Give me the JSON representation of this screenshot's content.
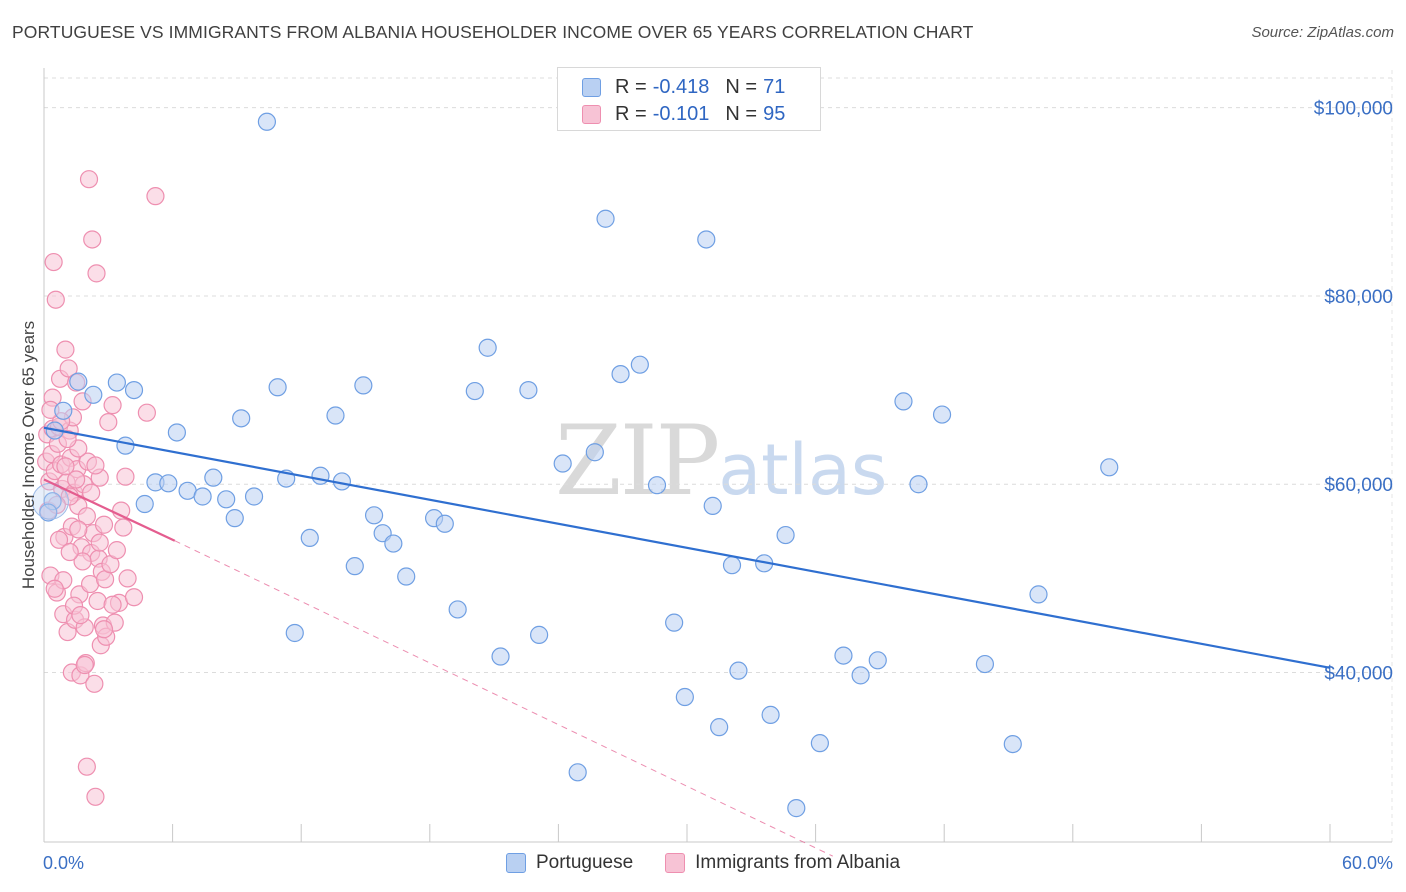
{
  "chart_data": {
    "type": "scatter",
    "title": "PORTUGUESE VS IMMIGRANTS FROM ALBANIA HOUSEHOLDER INCOME OVER 65 YEARS CORRELATION CHART",
    "source": "Source: ZipAtlas.com",
    "xlabel": "",
    "ylabel": "Householder Income Over 65 years",
    "xlim": [
      0,
      60
    ],
    "ylim": [
      22000,
      104000
    ],
    "x_tick_labels": [
      "0.0%",
      "60.0%"
    ],
    "y_ticks": [
      40000,
      60000,
      80000,
      100000
    ],
    "y_tick_labels": [
      "$40,000",
      "$60,000",
      "$80,000",
      "$100,000"
    ],
    "watermark": {
      "zip": "ZIP",
      "atlas": "atlas"
    },
    "legend": [
      {
        "r_label": "R =",
        "r_value": "-0.418",
        "n_label": "N =",
        "n_value": "71"
      },
      {
        "r_label": "R =",
        "r_value": "-0.101",
        "n_label": "N =",
        "n_value": "95"
      }
    ],
    "series": [
      {
        "name": "Portuguese",
        "color": "#6f9fe3",
        "fill": "#b9d0f2",
        "trend": {
          "x": [
            0,
            60
          ],
          "y": [
            66000,
            40500
          ],
          "color": "#2f6fd0"
        },
        "points": [
          [
            0.4,
            58200
          ],
          [
            0.5,
            65700
          ],
          [
            0.9,
            67800
          ],
          [
            1.6,
            70900
          ],
          [
            2.3,
            69500
          ],
          [
            3.4,
            70800
          ],
          [
            3.8,
            64100
          ],
          [
            4.2,
            70000
          ],
          [
            4.7,
            57900
          ],
          [
            5.2,
            60200
          ],
          [
            5.8,
            60100
          ],
          [
            6.2,
            65500
          ],
          [
            6.7,
            59300
          ],
          [
            7.4,
            58700
          ],
          [
            7.9,
            60700
          ],
          [
            8.5,
            58400
          ],
          [
            8.9,
            56400
          ],
          [
            9.2,
            67000
          ],
          [
            9.8,
            58700
          ],
          [
            10.4,
            98500
          ],
          [
            10.9,
            70300
          ],
          [
            11.3,
            60600
          ],
          [
            11.7,
            44200
          ],
          [
            12.4,
            54300
          ],
          [
            12.9,
            60900
          ],
          [
            13.6,
            67300
          ],
          [
            13.9,
            60300
          ],
          [
            14.5,
            51300
          ],
          [
            14.9,
            70500
          ],
          [
            15.4,
            56700
          ],
          [
            15.8,
            54800
          ],
          [
            16.3,
            53700
          ],
          [
            16.9,
            50200
          ],
          [
            18.2,
            56400
          ],
          [
            18.7,
            55800
          ],
          [
            19.3,
            46700
          ],
          [
            20.1,
            69900
          ],
          [
            20.7,
            74500
          ],
          [
            21.3,
            41700
          ],
          [
            22.6,
            70000
          ],
          [
            23.1,
            44000
          ],
          [
            24.2,
            62200
          ],
          [
            24.9,
            29400
          ],
          [
            25.7,
            63400
          ],
          [
            26.2,
            88200
          ],
          [
            26.9,
            71700
          ],
          [
            27.8,
            72700
          ],
          [
            28.6,
            59900
          ],
          [
            29.4,
            45300
          ],
          [
            29.9,
            37400
          ],
          [
            30.9,
            86000
          ],
          [
            31.2,
            57700
          ],
          [
            31.5,
            34200
          ],
          [
            32.1,
            51400
          ],
          [
            32.4,
            40200
          ],
          [
            33.6,
            51600
          ],
          [
            33.9,
            35500
          ],
          [
            34.6,
            54600
          ],
          [
            35.1,
            25600
          ],
          [
            36.2,
            32500
          ],
          [
            37.3,
            41800
          ],
          [
            38.1,
            39700
          ],
          [
            38.9,
            41300
          ],
          [
            40.1,
            68800
          ],
          [
            40.8,
            60000
          ],
          [
            41.9,
            67400
          ],
          [
            43.9,
            40900
          ],
          [
            45.2,
            32400
          ],
          [
            46.4,
            48300
          ],
          [
            49.7,
            61800
          ],
          [
            0.2,
            57000
          ]
        ]
      },
      {
        "name": "Immigrants from Albania",
        "color": "#ee8fb0",
        "fill": "#f7c3d5",
        "trend": {
          "x": [
            0,
            6.1
          ],
          "y": [
            60500,
            54000
          ],
          "color": "#e45d8f",
          "extension_x": [
            6.1,
            36.8
          ],
          "extension_y": [
            54000,
            20500
          ]
        },
        "points": [
          [
            0.1,
            62400
          ],
          [
            0.15,
            65300
          ],
          [
            0.2,
            57200
          ],
          [
            0.25,
            60300
          ],
          [
            0.3,
            50300
          ],
          [
            0.35,
            63200
          ],
          [
            0.4,
            65900
          ],
          [
            0.45,
            83600
          ],
          [
            0.5,
            61400
          ],
          [
            0.55,
            79600
          ],
          [
            0.6,
            48500
          ],
          [
            0.65,
            64300
          ],
          [
            0.7,
            66100
          ],
          [
            0.75,
            71200
          ],
          [
            0.8,
            62100
          ],
          [
            0.85,
            59500
          ],
          [
            0.9,
            46200
          ],
          [
            0.95,
            54400
          ],
          [
            1.0,
            74300
          ],
          [
            1.05,
            60200
          ],
          [
            1.1,
            44300
          ],
          [
            1.15,
            72300
          ],
          [
            1.2,
            65700
          ],
          [
            1.25,
            62800
          ],
          [
            1.3,
            40000
          ],
          [
            1.35,
            67100
          ],
          [
            1.4,
            59100
          ],
          [
            1.45,
            45600
          ],
          [
            1.5,
            70800
          ],
          [
            1.55,
            61600
          ],
          [
            1.6,
            57700
          ],
          [
            1.65,
            48300
          ],
          [
            1.7,
            39700
          ],
          [
            1.75,
            53300
          ],
          [
            1.8,
            68800
          ],
          [
            1.85,
            60000
          ],
          [
            1.9,
            44800
          ],
          [
            1.95,
            41000
          ],
          [
            2.0,
            56600
          ],
          [
            2.05,
            62400
          ],
          [
            2.1,
            92400
          ],
          [
            2.15,
            49400
          ],
          [
            2.2,
            52700
          ],
          [
            2.25,
            86000
          ],
          [
            2.3,
            54800
          ],
          [
            2.35,
            38800
          ],
          [
            2.4,
            26800
          ],
          [
            2.45,
            82400
          ],
          [
            2.5,
            47600
          ],
          [
            2.55,
            52100
          ],
          [
            2.6,
            60700
          ],
          [
            2.65,
            42900
          ],
          [
            2.7,
            50700
          ],
          [
            2.75,
            45000
          ],
          [
            2.8,
            55700
          ],
          [
            2.85,
            49900
          ],
          [
            2.9,
            43800
          ],
          [
            3.0,
            66600
          ],
          [
            3.1,
            51500
          ],
          [
            3.2,
            68400
          ],
          [
            3.3,
            45300
          ],
          [
            3.4,
            53000
          ],
          [
            3.5,
            47400
          ],
          [
            3.6,
            57200
          ],
          [
            3.7,
            55400
          ],
          [
            3.8,
            60800
          ],
          [
            3.9,
            50000
          ],
          [
            4.2,
            48000
          ],
          [
            4.8,
            67600
          ],
          [
            5.2,
            90600
          ],
          [
            1.6,
            63800
          ],
          [
            1.2,
            58700
          ],
          [
            0.7,
            54100
          ],
          [
            0.9,
            49800
          ],
          [
            1.4,
            47100
          ],
          [
            1.8,
            51800
          ],
          [
            2.0,
            30000
          ],
          [
            0.4,
            69200
          ],
          [
            1.1,
            64800
          ],
          [
            1.3,
            55500
          ],
          [
            1.5,
            60500
          ],
          [
            0.8,
            66700
          ],
          [
            2.2,
            59100
          ],
          [
            1.0,
            61900
          ],
          [
            1.7,
            46100
          ],
          [
            0.6,
            57800
          ],
          [
            2.6,
            53800
          ],
          [
            1.9,
            40800
          ],
          [
            0.3,
            67900
          ],
          [
            1.2,
            52800
          ],
          [
            2.4,
            62000
          ],
          [
            1.6,
            55200
          ],
          [
            0.5,
            48900
          ],
          [
            3.2,
            47200
          ],
          [
            2.8,
            44600
          ]
        ]
      }
    ]
  }
}
